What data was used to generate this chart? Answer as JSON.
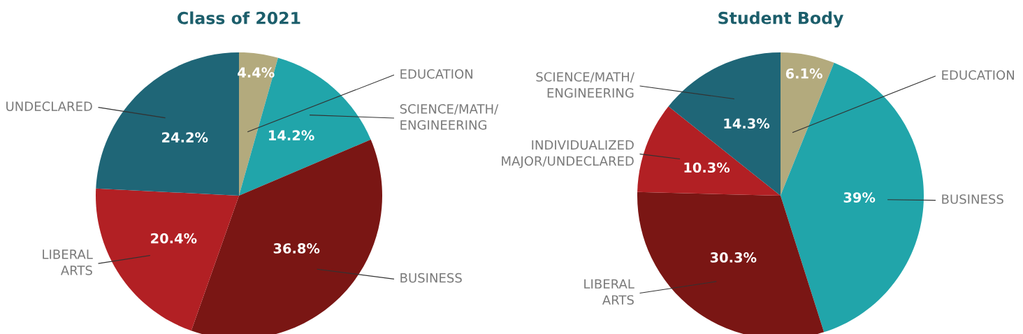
{
  "chart_data": [
    {
      "type": "pie",
      "title": "Class of 2021",
      "categories": [
        "EDUCATION",
        "SCIENCE/MATH/\nENGINEERING",
        "BUSINESS",
        "LIBERAL\nARTS",
        "UNDECLARED"
      ],
      "values": [
        4.4,
        14.2,
        36.8,
        20.4,
        24.2
      ],
      "value_labels": [
        "4.4%",
        "14.2%",
        "36.8%",
        "20.4%",
        "24.2%"
      ],
      "colors": [
        "#b3aa7d",
        "#21a5aa",
        "#7a1614",
        "#b22024",
        "#1f6677"
      ]
    },
    {
      "type": "pie",
      "title": "Student Body",
      "categories": [
        "EDUCATION",
        "BUSINESS",
        "LIBERAL\nARTS",
        "INDIVIDUALIZED\nMAJOR/UNDECLARED",
        "SCIENCE/MATH/\nENGINEERING"
      ],
      "values": [
        6.1,
        39,
        30.3,
        10.3,
        14.3
      ],
      "value_labels": [
        "6.1%",
        "39%",
        "30.3%",
        "10.3%",
        "14.3%"
      ],
      "colors": [
        "#b3aa7d",
        "#21a5aa",
        "#7a1614",
        "#b22024",
        "#1f6677"
      ]
    }
  ]
}
